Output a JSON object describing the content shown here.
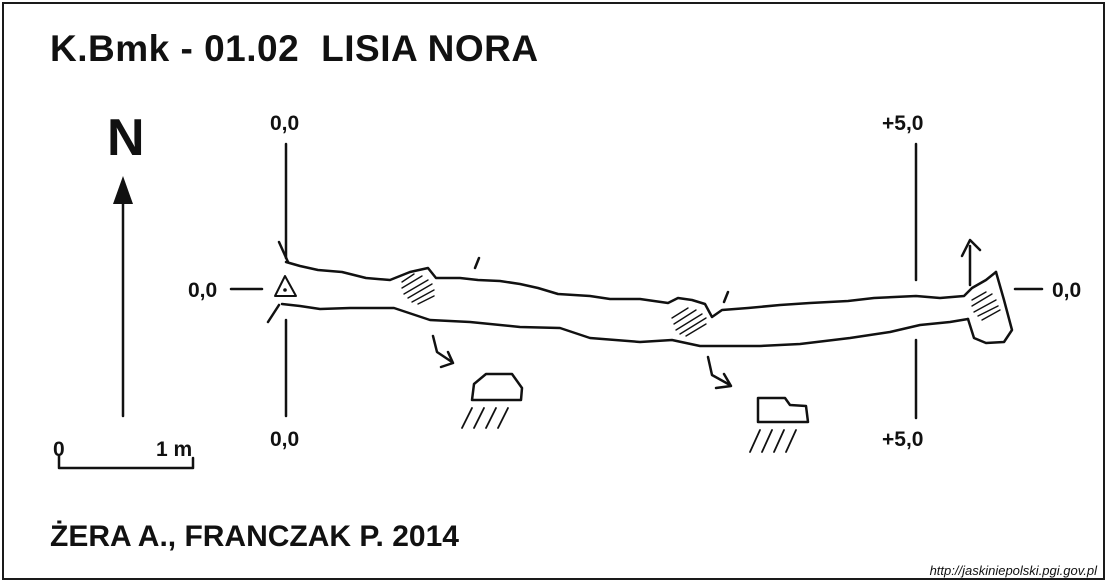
{
  "title": {
    "code": "K.Bmk - 01.02",
    "name": "LISIA NORA"
  },
  "north_label": "N",
  "scale_bar": {
    "start": "0",
    "end": "1 m"
  },
  "elevation_labels": {
    "top_left": "0,0",
    "bottom_left": "0,0",
    "top_right": "+5,0",
    "bottom_right": "+5,0",
    "left": "0,0",
    "right": "0,0"
  },
  "authors": "ŻERA A., FRANCZAK P. 2014",
  "source_url": "http://jaskiniepolski.pgi.gov.pl"
}
